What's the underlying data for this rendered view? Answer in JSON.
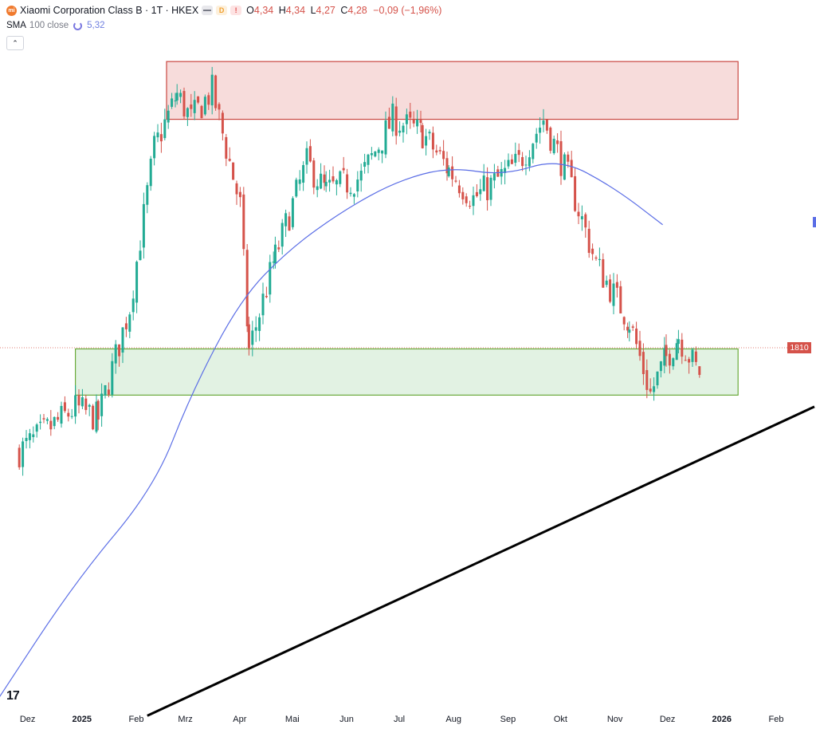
{
  "header": {
    "logo_text": "mi",
    "symbol_line": "Xiaomi Corporation Class B · 1T · HKEX",
    "badge_d": "D",
    "badge_alert": "!",
    "ohlc": {
      "o_label": "O",
      "o_value": "4,34",
      "h_label": "H",
      "h_value": "4,34",
      "l_label": "L",
      "l_value": "4,27",
      "c_label": "C",
      "c_value": "4,28",
      "change": "−0,09 (−1,96%)"
    }
  },
  "indicator": {
    "label": "SMA",
    "source": "100 close",
    "value": "5,32"
  },
  "collapse_glyph": "⌃",
  "price_badge": "1810",
  "tv_logo": "17",
  "colors": {
    "up": "#22ab94",
    "down": "#d5524a",
    "sma": "#5b6ee6",
    "resistance_fill": "rgba(213,82,74,0.2)",
    "resistance_border": "#c94740",
    "support_fill": "rgba(76,175,80,0.16)",
    "support_border": "#6aaa3a",
    "trendline": "#000000"
  },
  "chart_data": {
    "type": "candlestick",
    "x_axis_labels": [
      "Dez",
      "2025",
      "Feb",
      "Mrz",
      "Apr",
      "Mai",
      "Jun",
      "Jul",
      "Aug",
      "Sep",
      "Okt",
      "Nov",
      "Dez",
      "2026",
      "Feb"
    ],
    "x_axis_label_weights": [
      "normal",
      "bold",
      "normal",
      "normal",
      "normal",
      "normal",
      "normal",
      "normal",
      "normal",
      "normal",
      "normal",
      "normal",
      "normal",
      "bold",
      "normal"
    ],
    "last_close": 4.28,
    "price_marker": "1810",
    "key_points": [
      {
        "date": "2024-11-29",
        "close": 3.75
      },
      {
        "date": "2024-12-31",
        "close": 4.05
      },
      {
        "date": "2025-01-13",
        "close": 3.98
      },
      {
        "date": "2025-01-31",
        "close": 4.75
      },
      {
        "date": "2025-02-14",
        "close": 5.85
      },
      {
        "date": "2025-02-27",
        "close": 6.22
      },
      {
        "date": "2025-03-07",
        "close": 6.05
      },
      {
        "date": "2025-03-19",
        "close": 6.25
      },
      {
        "date": "2025-04-04",
        "close": 5.45
      },
      {
        "date": "2025-04-09",
        "close": 4.45
      },
      {
        "date": "2025-04-24",
        "close": 5.1
      },
      {
        "date": "2025-05-12",
        "close": 5.75
      },
      {
        "date": "2025-05-23",
        "close": 5.55
      },
      {
        "date": "2025-06-12",
        "close": 5.65
      },
      {
        "date": "2025-06-30",
        "close": 6.05
      },
      {
        "date": "2025-07-17",
        "close": 5.95
      },
      {
        "date": "2025-08-01",
        "close": 5.7
      },
      {
        "date": "2025-08-15",
        "close": 5.5
      },
      {
        "date": "2025-09-10",
        "close": 5.75
      },
      {
        "date": "2025-09-24",
        "close": 6.05
      },
      {
        "date": "2025-10-08",
        "close": 5.65
      },
      {
        "date": "2025-10-24",
        "close": 5.05
      },
      {
        "date": "2025-11-12",
        "close": 4.65
      },
      {
        "date": "2025-11-24",
        "close": 4.15
      },
      {
        "date": "2025-12-03",
        "close": 4.4
      },
      {
        "date": "2025-12-10",
        "close": 4.55
      },
      {
        "date": "2025-12-22",
        "close": 4.28
      }
    ],
    "sma_100_points": [
      {
        "date": "2024-11-15",
        "value": 2.0
      },
      {
        "date": "2024-12-31",
        "value": 2.85
      },
      {
        "date": "2025-02-14",
        "value": 3.5
      },
      {
        "date": "2025-03-07",
        "value": 4.15
      },
      {
        "date": "2025-04-04",
        "value": 4.8
      },
      {
        "date": "2025-05-02",
        "value": 5.15
      },
      {
        "date": "2025-06-02",
        "value": 5.42
      },
      {
        "date": "2025-07-02",
        "value": 5.62
      },
      {
        "date": "2025-08-01",
        "value": 5.72
      },
      {
        "date": "2025-09-01",
        "value": 5.66
      },
      {
        "date": "2025-10-03",
        "value": 5.78
      },
      {
        "date": "2025-11-03",
        "value": 5.58
      },
      {
        "date": "2025-12-01",
        "value": 5.32
      }
    ],
    "zones": [
      {
        "name": "resistance",
        "from": "2025-02-21",
        "to": "2026-01-13",
        "low": 6.05,
        "high": 6.45
      },
      {
        "name": "support",
        "from": "2024-12-31",
        "to": "2026-01-13",
        "low": 4.14,
        "high": 4.46
      }
    ],
    "trendline": {
      "from": {
        "date": "2025-02-10",
        "price": 1.92
      },
      "to": {
        "date": "2026-02-27",
        "price": 4.06
      }
    },
    "y_range": [
      1.9,
      6.6
    ],
    "grid": false,
    "legend": "top-left"
  }
}
